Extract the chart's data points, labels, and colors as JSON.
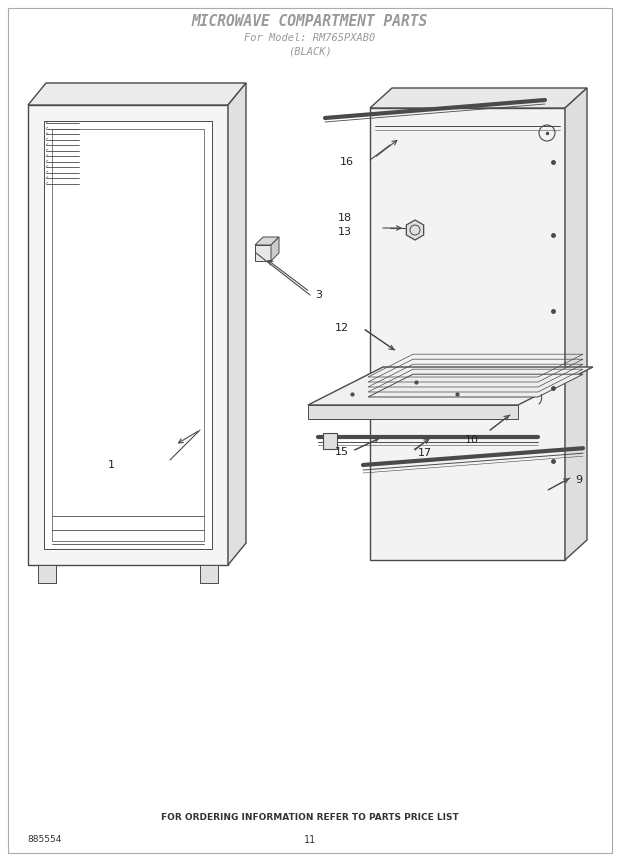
{
  "title_line1": "MICROWAVE COMPARTMENT PARTS",
  "title_line2": "For Model: RM765PXAB0",
  "title_line3": "(BLACK)",
  "footer_text": "FOR ORDERING INFORMATION REFER TO PARTS PRICE LIST",
  "page_num": "11",
  "doc_num": "885554",
  "bg_color": "#ffffff",
  "line_color": "#4a4a4a",
  "title_color": "#999999",
  "label_color": "#222222",
  "label_fontsize": 8.0,
  "title_fontsize1": 10.5,
  "title_fontsize2": 7.5
}
